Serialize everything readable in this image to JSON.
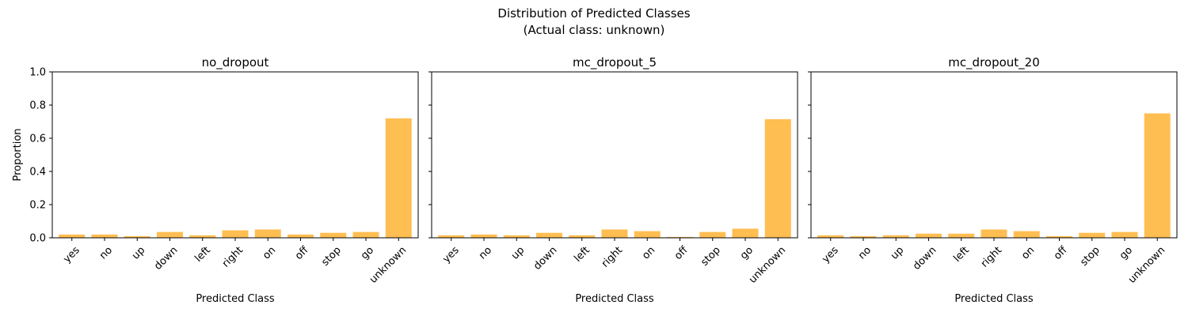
{
  "figure": {
    "suptitle_line1": "Distribution of Predicted Classes",
    "suptitle_line2": "(Actual class: unknown)",
    "bar_color": "#ffbe52"
  },
  "chart_data": [
    {
      "type": "bar",
      "title": "no_dropout",
      "xlabel": "Predicted Class",
      "ylabel": "Proportion",
      "ylim": [
        0,
        1.0
      ],
      "yticks": [
        "0.0",
        "0.2",
        "0.4",
        "0.6",
        "0.8",
        "1.0"
      ],
      "categories": [
        "yes",
        "no",
        "up",
        "down",
        "left",
        "right",
        "on",
        "off",
        "stop",
        "go",
        "unknown"
      ],
      "values": [
        0.02,
        0.02,
        0.01,
        0.035,
        0.015,
        0.045,
        0.05,
        0.02,
        0.03,
        0.035,
        0.72
      ]
    },
    {
      "type": "bar",
      "title": "mc_dropout_5",
      "xlabel": "Predicted Class",
      "ylabel": "",
      "ylim": [
        0,
        1.0
      ],
      "categories": [
        "yes",
        "no",
        "up",
        "down",
        "left",
        "right",
        "on",
        "off",
        "stop",
        "go",
        "unknown"
      ],
      "values": [
        0.015,
        0.02,
        0.015,
        0.03,
        0.015,
        0.05,
        0.04,
        0.005,
        0.035,
        0.055,
        0.715
      ]
    },
    {
      "type": "bar",
      "title": "mc_dropout_20",
      "xlabel": "Predicted Class",
      "ylabel": "",
      "ylim": [
        0,
        1.0
      ],
      "categories": [
        "yes",
        "no",
        "up",
        "down",
        "left",
        "right",
        "on",
        "off",
        "stop",
        "go",
        "unknown"
      ],
      "values": [
        0.015,
        0.01,
        0.015,
        0.025,
        0.025,
        0.05,
        0.04,
        0.01,
        0.03,
        0.035,
        0.75
      ]
    }
  ]
}
